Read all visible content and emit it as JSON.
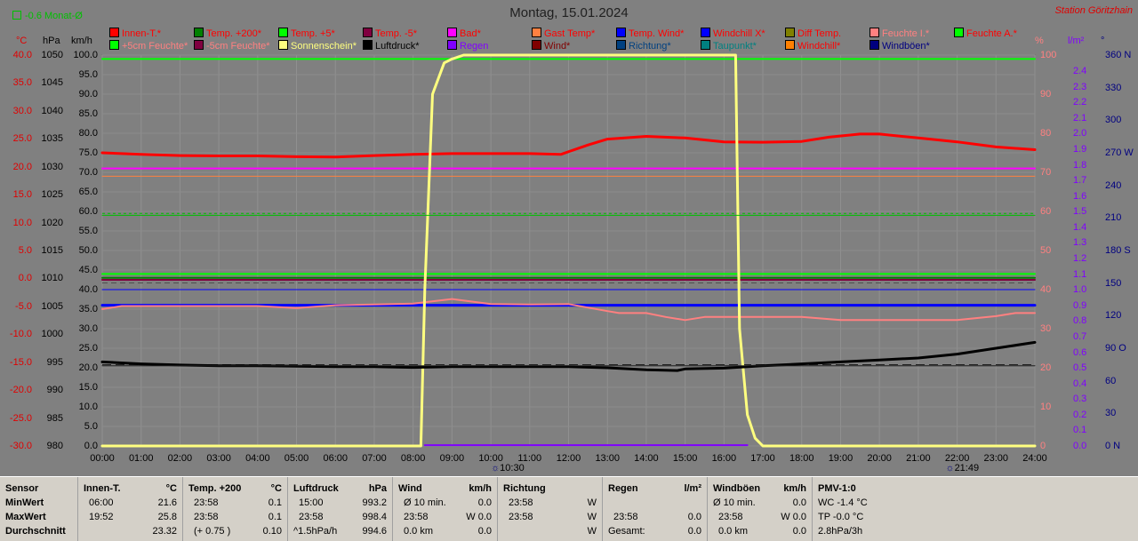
{
  "header": {
    "title": "Montag, 15.01.2024",
    "station": "Station Göritzhain",
    "monat": "-0.6 Monat-Ø"
  },
  "legend": [
    {
      "label": "Innen-T.*",
      "color": "#ff0000",
      "text": "#ff0000"
    },
    {
      "label": "Temp. +200*",
      "color": "#008000",
      "text": "#ff0000"
    },
    {
      "label": "Temp. +5*",
      "color": "#00ff00",
      "text": "#ff0000"
    },
    {
      "label": "Temp. -5*",
      "color": "#800040",
      "text": "#ff0000"
    },
    {
      "label": "Bad*",
      "color": "#ff00ff",
      "text": "#ff0000"
    },
    {
      "label": "Gast Temp*",
      "color": "#ff8040",
      "text": "#ff0000"
    },
    {
      "label": "Temp. Wind*",
      "color": "#0000ff",
      "text": "#ff0000"
    },
    {
      "label": "Windchill X*",
      "color": "#0000ff",
      "text": "#ff0000"
    },
    {
      "label": "Diff Temp.",
      "color": "#808000",
      "text": "#ff0000"
    },
    {
      "label": "Feuchte I.*",
      "color": "#ff8080",
      "text": "#ff8080"
    },
    {
      "label": "Feuchte A.*",
      "color": "#00ff00",
      "text": "#ff0000"
    },
    {
      "label": "+5cm Feuchte*",
      "color": "#00ff00",
      "text": "#ff8080"
    },
    {
      "label": "-5cm Feuchte*",
      "color": "#800040",
      "text": "#ff8080"
    },
    {
      "label": "Sonnenschein*",
      "color": "#ffff80",
      "text": "#ffff80"
    },
    {
      "label": "Luftdruck*",
      "color": "#000000",
      "text": "#000000"
    },
    {
      "label": "Regen",
      "color": "#8000ff",
      "text": "#8000ff"
    },
    {
      "label": "Wind*",
      "color": "#800000",
      "text": "#800000"
    },
    {
      "label": "Richtung*",
      "color": "#004080",
      "text": "#004080"
    },
    {
      "label": "Taupunkt*",
      "color": "#008080",
      "text": "#008080"
    },
    {
      "label": "Windchill*",
      "color": "#ff8000",
      "text": "#ff0000"
    },
    {
      "label": "Windböen*",
      "color": "#000080",
      "text": "#000080"
    }
  ],
  "axes": {
    "units": {
      "temp": "°C",
      "press": "hPa",
      "speed": "km/h",
      "hum": "%",
      "rain": "l/m²",
      "dir": "°"
    },
    "temp_ticks": [
      "40.0",
      "35.0",
      "30.0",
      "25.0",
      "20.0",
      "15.0",
      "10.0",
      "5.0",
      "0.0",
      "-5.0",
      "-10.0",
      "-15.0",
      "-20.0",
      "-25.0",
      "-30.0"
    ],
    "press_ticks": [
      "1050",
      "1045",
      "1040",
      "1035",
      "1030",
      "1025",
      "1020",
      "1015",
      "1010",
      "1005",
      "1000",
      "995",
      "990",
      "985",
      "980"
    ],
    "speed_ticks": [
      "100.0",
      "95.0",
      "90.0",
      "85.0",
      "80.0",
      "75.0",
      "70.0",
      "65.0",
      "60.0",
      "55.0",
      "50.0",
      "45.0",
      "40.0",
      "35.0",
      "30.0",
      "25.0",
      "20.0",
      "15.0",
      "10.0",
      "5.0",
      "0.0"
    ],
    "hum_ticks": [
      "100",
      "90",
      "80",
      "70",
      "60",
      "50",
      "40",
      "30",
      "20",
      "10",
      "0"
    ],
    "rain_ticks": [
      "2.4",
      "2.3",
      "2.2",
      "2.1",
      "2.0",
      "1.9",
      "1.8",
      "1.7",
      "1.6",
      "1.5",
      "1.4",
      "1.3",
      "1.2",
      "1.1",
      "1.0",
      "0.9",
      "0.8",
      "0.7",
      "0.6",
      "0.5",
      "0.4",
      "0.3",
      "0.2",
      "0.1",
      "0.0"
    ],
    "dir_ticks": [
      "360 N",
      "330",
      "300",
      "270 W",
      "240",
      "210",
      "180 S",
      "150",
      "120",
      "90 O",
      "60",
      "30",
      "0 N"
    ],
    "time_ticks": [
      "00:00",
      "01:00",
      "02:00",
      "03:00",
      "04:00",
      "05:00",
      "06:00",
      "07:00",
      "08:00",
      "09:00",
      "10:00",
      "11:00",
      "12:00",
      "13:00",
      "14:00",
      "15:00",
      "16:00",
      "17:00",
      "18:00",
      "19:00",
      "20:00",
      "21:00",
      "22:00",
      "23:00",
      "24:00"
    ],
    "sunrise": "10:30",
    "sunset": "21:49"
  },
  "chart_data": {
    "type": "line",
    "x_unit": "hours",
    "series": [
      {
        "name": "Innen-T.*",
        "color": "#ff0000",
        "axis": "speed",
        "x": [
          0,
          1,
          2,
          3,
          4,
          5,
          6,
          7,
          8,
          9,
          10,
          11,
          11.8,
          12.5,
          13,
          14,
          15,
          16,
          17,
          18,
          18.7,
          19.5,
          20,
          21,
          22,
          23,
          24
        ],
        "y": [
          75,
          74.6,
          74.3,
          74.2,
          74.2,
          74.0,
          73.9,
          74.3,
          74.6,
          74.8,
          74.8,
          74.8,
          74.6,
          77,
          78.5,
          79.2,
          78.8,
          77.8,
          77.7,
          77.9,
          79,
          79.8,
          79.8,
          78.8,
          77.8,
          76.5,
          75.8
        ]
      },
      {
        "name": "Bad*",
        "color": "#ff00ff",
        "axis": "speed",
        "x": [
          0,
          24
        ],
        "y": [
          71,
          71
        ]
      },
      {
        "name": "Gast Temp*",
        "color": "#ff8040",
        "axis": "speed",
        "x": [
          0,
          24
        ],
        "y": [
          69,
          69
        ]
      },
      {
        "name": "Feuchte A.*",
        "color": "#00ff00",
        "axis": "speed",
        "x": [
          0,
          24
        ],
        "y": [
          99,
          99
        ]
      },
      {
        "name": "Temp. +200*",
        "color": "#008000",
        "axis": "speed",
        "x": [
          0,
          24
        ],
        "y": [
          43,
          43
        ]
      },
      {
        "name": "Temp. +5*",
        "color": "#00ff00",
        "axis": "speed",
        "x": [
          0,
          24
        ],
        "y": [
          44,
          44
        ]
      },
      {
        "name": "Temp. -5*",
        "color": "#800040",
        "axis": "speed",
        "x": [
          0,
          24
        ],
        "y": [
          42.5,
          42.5
        ]
      },
      {
        "name": "Temp. Wind*",
        "color": "#0000ff",
        "axis": "speed",
        "x": [
          0,
          24
        ],
        "y": [
          36,
          36
        ]
      },
      {
        "name": "Windchill X*",
        "color": "#0000ff",
        "axis": "speed",
        "x": [
          0,
          24
        ],
        "y": [
          40,
          40
        ]
      },
      {
        "name": "Feuchte I.*",
        "color": "#ff8080",
        "axis": "speed",
        "x": [
          0,
          0.5,
          1,
          2,
          3,
          4,
          5,
          6,
          7,
          8,
          9,
          10,
          11,
          12,
          13,
          13.3,
          14,
          14.5,
          15,
          15.5,
          16,
          17,
          18,
          19,
          20,
          21,
          22,
          23,
          23.5,
          24
        ],
        "y": [
          35,
          35.8,
          35.8,
          35.8,
          35.8,
          35.8,
          35.3,
          36,
          36.2,
          36.4,
          37.6,
          36.3,
          36.2,
          36.3,
          34.5,
          34,
          34,
          33,
          32.2,
          33,
          33,
          33,
          33,
          32.2,
          32.2,
          32.2,
          32.2,
          33.2,
          34,
          34
        ]
      },
      {
        "name": "Sonnenschein*",
        "color": "#ffff80",
        "axis": "speed",
        "x": [
          0,
          8.2,
          8.3,
          8.5,
          8.8,
          9,
          9.3,
          10,
          11,
          12,
          14,
          15,
          16,
          16.3,
          16.4,
          16.6,
          16.8,
          17,
          24
        ],
        "y": [
          0,
          0,
          40,
          90,
          98,
          99,
          100,
          100,
          100,
          100,
          100,
          100,
          100,
          100,
          30,
          8,
          2,
          0,
          0
        ]
      },
      {
        "name": "Luftdruck*",
        "color": "#000000",
        "axis": "speed",
        "x": [
          0,
          1,
          2,
          3,
          4,
          5,
          6,
          7,
          8,
          9,
          10,
          11,
          12,
          13,
          14,
          14.8,
          15,
          16,
          17,
          18,
          19,
          20,
          21,
          22,
          23,
          24
        ],
        "y": [
          21.5,
          21,
          20.7,
          20.5,
          20.5,
          20.4,
          20.3,
          20.3,
          20.1,
          20.3,
          20.3,
          20.3,
          20.3,
          20,
          19.5,
          19.3,
          19.7,
          19.9,
          20.5,
          21,
          21.5,
          22,
          22.5,
          23.5,
          25,
          26.5
        ]
      },
      {
        "name": "Windchill*",
        "color": "#202020",
        "axis": "speed",
        "x": [
          0,
          24
        ],
        "y": [
          20.5,
          20.5
        ]
      },
      {
        "name": "Taupunkt*",
        "color": "#00c000",
        "axis": "speed",
        "x": [
          0,
          24
        ],
        "y": [
          59,
          59
        ]
      },
      {
        "name": "Regen",
        "color": "#8000ff",
        "axis": "speed",
        "x": [
          8.3,
          16.6
        ],
        "y": [
          0.2,
          0.2
        ]
      }
    ]
  },
  "footer": {
    "rowlabels": {
      "col_header": "Sensor",
      "min": "MinWert",
      "max": "MaxWert",
      "avg": "Durchschnitt"
    },
    "innen": {
      "h1": "Innen-T.",
      "h2": "°C",
      "min_t": "06:00",
      "min_v": "21.6",
      "max_t": "19:52",
      "max_v": "25.8",
      "avg_v": "23.32"
    },
    "temp": {
      "h1": "Temp. +200",
      "h2": "°C",
      "min_t": "23:58",
      "min_v": "0.1",
      "max_t": "23:58",
      "max_v": "0.1",
      "avg_t": "(+ 0.75 )",
      "avg_v": "0.10"
    },
    "press": {
      "h1": "Luftdruck",
      "h2": "hPa",
      "min_t": "15:00",
      "min_v": "993.2",
      "max_t": "23:58",
      "max_v": "998.4",
      "avg_t": "^1.5hPa/h",
      "avg_v": "994.6"
    },
    "wind": {
      "h1": "Wind",
      "h2": "km/h",
      "min_t": "Ø 10 min.",
      "min_v": "0.0",
      "max_t": "23:58",
      "max_v": "W 0.0",
      "avg_t": "0.0 km",
      "avg_v": "0.0"
    },
    "dir": {
      "h1": "Richtung",
      "min_t": "23:58",
      "min_v": "W",
      "max_t": "23:58",
      "max_v": "W",
      "avg_v": "W"
    },
    "rain": {
      "h1": "Regen",
      "h2": "l/m²",
      "max_t": "23:58",
      "max_v": "0.0",
      "avg_t": "Gesamt:",
      "avg_v": "0.0"
    },
    "gust": {
      "h1": "Windböen",
      "h2": "km/h",
      "min_t": "Ø 10 min.",
      "min_v": "0.0",
      "max_t": "23:58",
      "max_v": "W 0.0",
      "avg_t": "0.0 km",
      "avg_v": "0.0"
    },
    "pmv": {
      "h1": "PMV-1:0",
      "min": "WC -1.4 °C",
      "max": "TP -0.0 °C",
      "avg": "2.8hPa/3h"
    }
  }
}
